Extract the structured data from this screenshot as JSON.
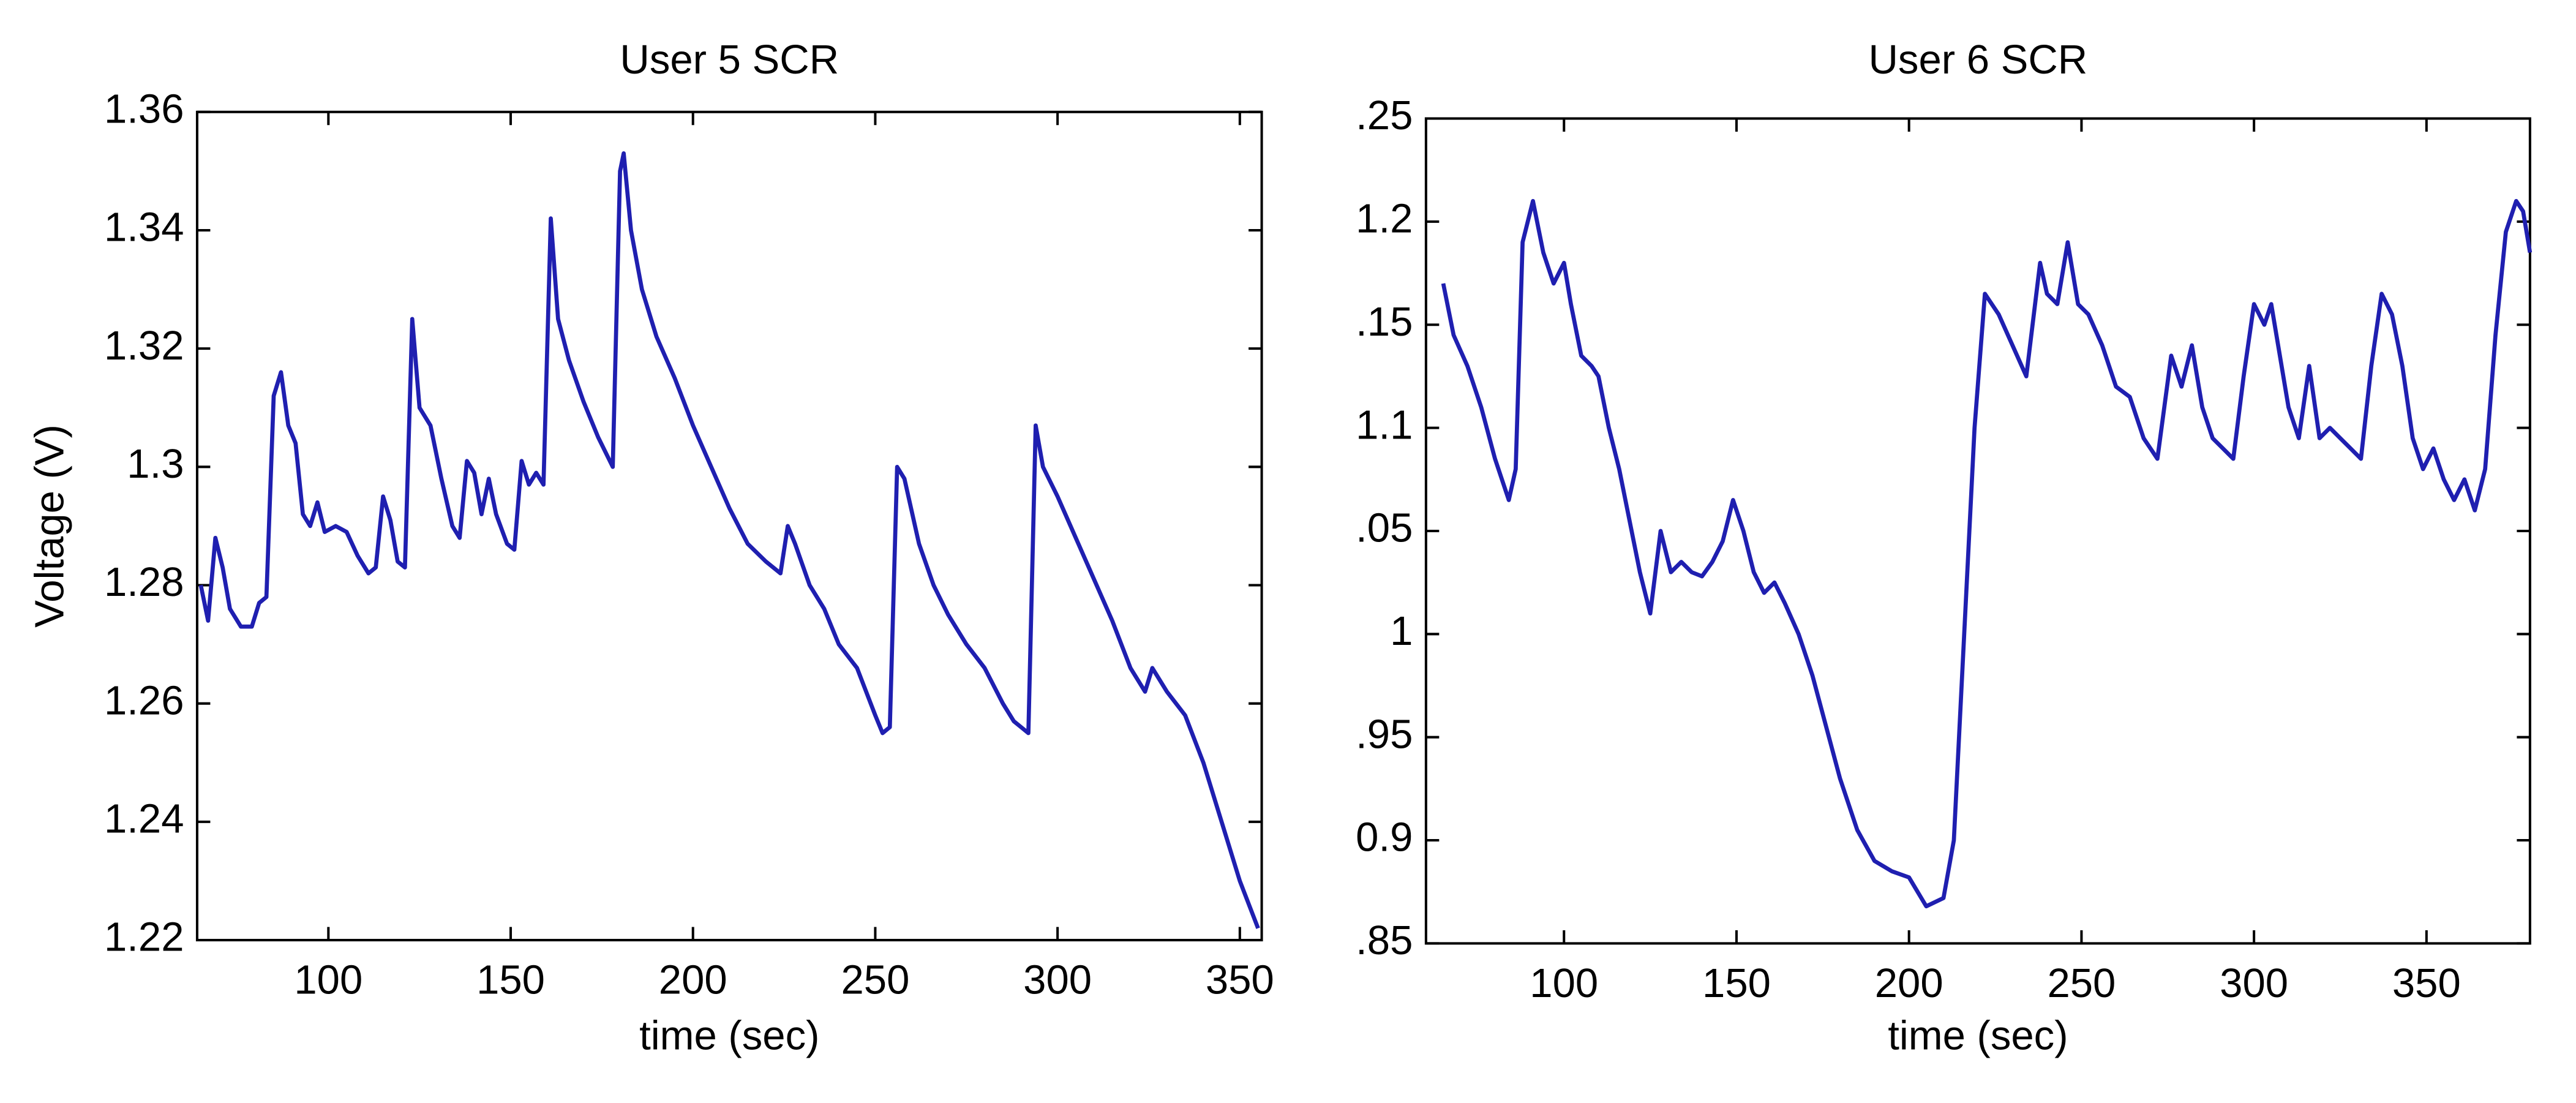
{
  "chart_data": [
    {
      "type": "line",
      "title": "User 5 SCR",
      "xlabel": "time (sec)",
      "ylabel": "Voltage (V)",
      "color": "#1f1fb0",
      "xlim": [
        64,
        356
      ],
      "xticks": [
        100,
        150,
        200,
        250,
        300,
        350
      ],
      "ylim": [
        1.22,
        1.36
      ],
      "yticks": [
        1.22,
        1.24,
        1.26,
        1.28,
        1.3,
        1.32,
        1.34,
        1.36
      ],
      "x": [
        65,
        67,
        69,
        71,
        73,
        76,
        79,
        81,
        83,
        85,
        87,
        89,
        91,
        93,
        95,
        97,
        99,
        102,
        105,
        108,
        111,
        113,
        115,
        117,
        119,
        121,
        123,
        125,
        128,
        131,
        134,
        136,
        138,
        140,
        142,
        144,
        146,
        149,
        151,
        153,
        155,
        157,
        159,
        161,
        163,
        166,
        170,
        174,
        178,
        180,
        181,
        183,
        186,
        190,
        195,
        200,
        205,
        210,
        215,
        220,
        224,
        226,
        228,
        232,
        236,
        240,
        245,
        250,
        252,
        254,
        256,
        258,
        262,
        266,
        270,
        275,
        280,
        285,
        288,
        290,
        292,
        294,
        296,
        300,
        305,
        310,
        315,
        320,
        324,
        326,
        330,
        335,
        340,
        345,
        350,
        355
      ],
      "values": [
        1.28,
        1.274,
        1.288,
        1.283,
        1.276,
        1.273,
        1.273,
        1.277,
        1.278,
        1.312,
        1.316,
        1.307,
        1.304,
        1.292,
        1.29,
        1.294,
        1.289,
        1.29,
        1.289,
        1.285,
        1.282,
        1.283,
        1.295,
        1.291,
        1.284,
        1.283,
        1.325,
        1.31,
        1.307,
        1.298,
        1.29,
        1.288,
        1.301,
        1.299,
        1.292,
        1.298,
        1.292,
        1.287,
        1.286,
        1.301,
        1.297,
        1.299,
        1.297,
        1.342,
        1.325,
        1.318,
        1.311,
        1.305,
        1.3,
        1.35,
        1.353,
        1.34,
        1.33,
        1.322,
        1.315,
        1.307,
        1.3,
        1.293,
        1.287,
        1.284,
        1.282,
        1.29,
        1.287,
        1.28,
        1.276,
        1.27,
        1.266,
        1.258,
        1.255,
        1.256,
        1.3,
        1.298,
        1.287,
        1.28,
        1.275,
        1.27,
        1.266,
        1.26,
        1.257,
        1.256,
        1.255,
        1.307,
        1.3,
        1.295,
        1.288,
        1.281,
        1.274,
        1.266,
        1.262,
        1.266,
        1.262,
        1.258,
        1.25,
        1.24,
        1.23,
        1.222
      ]
    },
    {
      "type": "line",
      "title": "User 6 SCR",
      "xlabel": "time (sec)",
      "color": "#1f1fb0",
      "xlim": [
        60,
        380
      ],
      "xticks": [
        100,
        150,
        200,
        250,
        300,
        350
      ],
      "ylim": [
        0.85,
        1.25
      ],
      "yticks": [
        {
          "value": 0.85,
          "label": ".85"
        },
        0.9,
        {
          "value": 0.95,
          "label": ".95"
        },
        1,
        {
          "value": 1.05,
          "label": ".05"
        },
        1.1,
        {
          "value": 1.15,
          "label": ".15"
        },
        1.2,
        {
          "value": 1.25,
          "label": ".25"
        }
      ],
      "x": [
        65,
        68,
        72,
        76,
        80,
        84,
        86,
        88,
        91,
        94,
        97,
        100,
        102,
        105,
        108,
        110,
        113,
        116,
        119,
        122,
        125,
        128,
        131,
        134,
        137,
        140,
        143,
        146,
        149,
        152,
        155,
        158,
        161,
        164,
        168,
        172,
        176,
        180,
        185,
        190,
        195,
        200,
        205,
        210,
        213,
        216,
        219,
        222,
        226,
        230,
        234,
        238,
        240,
        243,
        246,
        249,
        252,
        256,
        260,
        264,
        268,
        272,
        276,
        279,
        282,
        285,
        288,
        291,
        294,
        297,
        300,
        303,
        305,
        307,
        310,
        313,
        316,
        319,
        322,
        325,
        328,
        331,
        334,
        337,
        340,
        343,
        346,
        349,
        352,
        355,
        358,
        361,
        364,
        367,
        370,
        373,
        376,
        378,
        380
      ],
      "values": [
        1.17,
        1.145,
        1.13,
        1.11,
        1.085,
        1.065,
        1.08,
        1.19,
        1.21,
        1.185,
        1.17,
        1.18,
        1.16,
        1.135,
        1.13,
        1.125,
        1.1,
        1.08,
        1.055,
        1.03,
        1.01,
        1.05,
        1.03,
        1.035,
        1.03,
        1.028,
        1.035,
        1.045,
        1.065,
        1.05,
        1.03,
        1.02,
        1.025,
        1.015,
        1.0,
        0.98,
        0.955,
        0.93,
        0.905,
        0.89,
        0.885,
        0.882,
        0.868,
        0.872,
        0.9,
        1.0,
        1.1,
        1.165,
        1.155,
        1.14,
        1.125,
        1.18,
        1.165,
        1.16,
        1.19,
        1.16,
        1.155,
        1.14,
        1.12,
        1.115,
        1.095,
        1.085,
        1.135,
        1.12,
        1.14,
        1.11,
        1.095,
        1.09,
        1.085,
        1.125,
        1.16,
        1.15,
        1.16,
        1.14,
        1.11,
        1.095,
        1.13,
        1.095,
        1.1,
        1.095,
        1.09,
        1.085,
        1.13,
        1.165,
        1.155,
        1.13,
        1.095,
        1.08,
        1.09,
        1.075,
        1.065,
        1.075,
        1.06,
        1.08,
        1.145,
        1.195,
        1.21,
        1.205,
        1.185
      ]
    }
  ]
}
